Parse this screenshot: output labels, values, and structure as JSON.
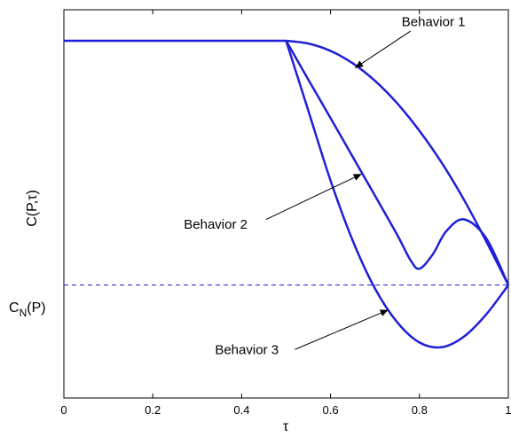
{
  "chart_data": {
    "type": "line",
    "xlabel": "τ",
    "ylabel": "C(P,τ)",
    "xlim": [
      0,
      1
    ],
    "ylim": [
      0,
      1
    ],
    "x_ticks": [
      "0",
      "0.2",
      "0.4",
      "0.6",
      "0.8",
      "1"
    ],
    "x_tick_values": [
      0,
      0.2,
      0.4,
      0.6,
      0.8,
      1
    ],
    "y_ticks": [],
    "grid": false,
    "line_color": "#1f1fd6",
    "reference_line": {
      "label": "C_N(P)",
      "label_main": "C",
      "label_sub": "N",
      "label_rest": "(P)",
      "y": 0.291,
      "style": "dashed"
    },
    "series": [
      {
        "x": [
          0,
          0.5,
          0.55,
          0.6,
          0.65,
          0.7,
          0.75,
          0.8,
          0.85,
          0.9,
          0.95,
          1.0
        ],
        "y": [
          0.92,
          0.92,
          0.913,
          0.894,
          0.862,
          0.817,
          0.759,
          0.688,
          0.606,
          0.511,
          0.404,
          0.291
        ]
      },
      {
        "x": [
          0.5,
          0.55,
          0.6,
          0.65,
          0.7,
          0.75,
          0.78,
          0.8,
          0.83,
          0.86,
          0.9,
          0.95,
          1.0
        ],
        "y": [
          0.92,
          0.82,
          0.721,
          0.621,
          0.521,
          0.42,
          0.355,
          0.333,
          0.37,
          0.429,
          0.46,
          0.412,
          0.291
        ]
      },
      {
        "x": [
          0.5,
          0.55,
          0.6,
          0.65,
          0.7,
          0.75,
          0.8,
          0.85,
          0.9,
          0.95,
          1.0
        ],
        "y": [
          0.92,
          0.74,
          0.56,
          0.405,
          0.282,
          0.195,
          0.143,
          0.131,
          0.158,
          0.215,
          0.291
        ]
      }
    ],
    "annotations": [
      {
        "text": "Behavior 1",
        "text_x": 0.76,
        "text_y": 0.958,
        "arrow_from": [
          0.78,
          0.945
        ],
        "arrow_to": [
          0.655,
          0.85
        ]
      },
      {
        "text": "Behavior 2",
        "text_x": 0.27,
        "text_y": 0.436,
        "arrow_from": [
          0.455,
          0.46
        ],
        "arrow_to": [
          0.67,
          0.577
        ]
      },
      {
        "text": "Behavior 3",
        "text_x": 0.34,
        "text_y": 0.113,
        "arrow_from": [
          0.52,
          0.125
        ],
        "arrow_to": [
          0.73,
          0.227
        ]
      }
    ]
  }
}
